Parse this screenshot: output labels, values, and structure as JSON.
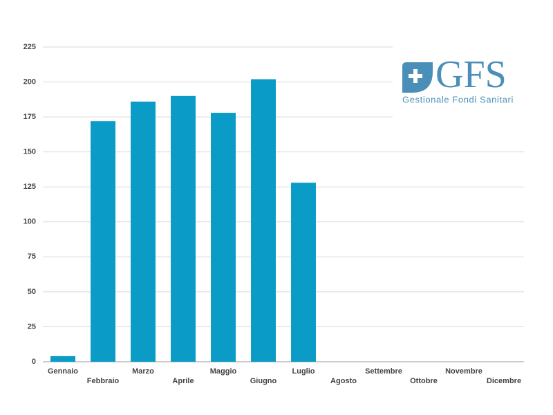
{
  "chart_data": {
    "type": "bar",
    "categories": [
      "Gennaio",
      "Febbraio",
      "Marzo",
      "Aprile",
      "Maggio",
      "Giugno",
      "Luglio",
      "Agosto",
      "Settembre",
      "Ottobre",
      "Novembre",
      "Dicembre"
    ],
    "values": [
      4,
      172,
      186,
      190,
      178,
      202,
      128,
      0,
      0,
      0,
      0,
      0
    ],
    "color": "#0a9cc6",
    "ylim": [
      0,
      225
    ],
    "yticks": [
      0,
      25,
      50,
      75,
      100,
      125,
      150,
      175,
      200,
      225
    ],
    "grid": true
  },
  "logo": {
    "text": "GFS",
    "tagline": "Gestionale Fondi Sanitari"
  }
}
